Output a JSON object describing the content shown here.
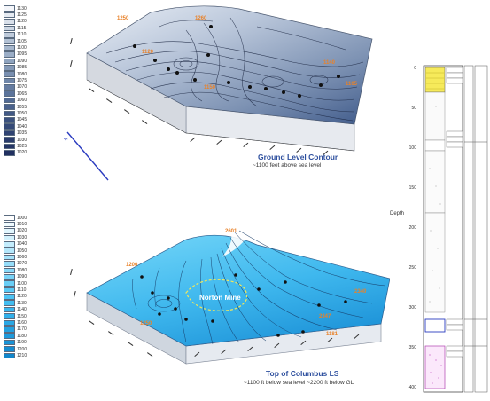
{
  "legend_top": {
    "values": [
      "1130",
      "1125",
      "1120",
      "1115",
      "1110",
      "1105",
      "1100",
      "1095",
      "1090",
      "1085",
      "1080",
      "1075",
      "1070",
      "1065",
      "1060",
      "1055",
      "1050",
      "1045",
      "1040",
      "1035",
      "1030",
      "1025",
      "1020"
    ],
    "colors": [
      "#f4f6fa",
      "#e6ebf2",
      "#d9e0ea",
      "#ccd6e3",
      "#bfcbdb",
      "#b2c1d4",
      "#a6b7cd",
      "#9aadc6",
      "#8fa4bf",
      "#8499b7",
      "#798fb0",
      "#6f86a9",
      "#657ca1",
      "#5b739a",
      "#526a93",
      "#4a618c",
      "#425985",
      "#3b517e",
      "#354a78",
      "#2f4372",
      "#2a3c6c",
      "#253666",
      "#203060"
    ]
  },
  "legend_bottom": {
    "values": [
      "1000",
      "1010",
      "1020",
      "1030",
      "1040",
      "1050",
      "1060",
      "1070",
      "1080",
      "1090",
      "1100",
      "1110",
      "1120",
      "1130",
      "1140",
      "1150",
      "1160",
      "1170",
      "1180",
      "1190",
      "1200",
      "1210"
    ],
    "colors": [
      "#ffffff",
      "#f0fbff",
      "#e1f6fe",
      "#d2f1fd",
      "#c3ecfc",
      "#b4e7fb",
      "#a5e2fa",
      "#96ddf9",
      "#87d8f8",
      "#78d3f7",
      "#69cef6",
      "#5ac9f5",
      "#4dc3f3",
      "#43bdf0",
      "#3ab6ed",
      "#32afe9",
      "#2aa8e5",
      "#24a1e0",
      "#1f9adb",
      "#1a93d6",
      "#168cd0",
      "#1286ca"
    ]
  },
  "top_map": {
    "title": "Ground Level Contour",
    "subtitle": "~1100 feet above sea level",
    "labels": [
      "1250",
      "1260",
      "1120",
      "1150",
      "1140",
      "1105"
    ],
    "north_label": "N"
  },
  "bottom_map": {
    "title": "Top of Columbus LS",
    "subtitle": "~1100 ft below sea level ~2200 ft below GL",
    "feature_label": "Norton Mine",
    "labels": [
      "2601",
      "1200",
      "1250",
      "2340",
      "2347",
      "1181"
    ]
  },
  "column": {
    "depth_label": "Depth",
    "depth_ticks": [
      "0",
      "50",
      "100",
      "150",
      "200",
      "250",
      "300",
      "350",
      "400"
    ]
  }
}
